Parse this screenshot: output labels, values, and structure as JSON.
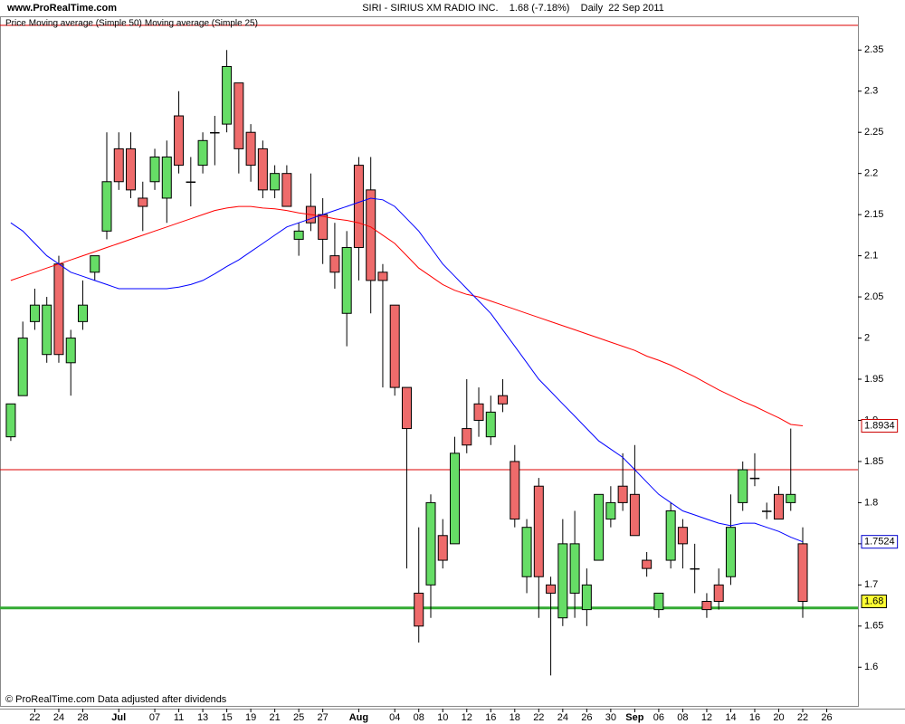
{
  "chart_data": {
    "type": "candlestick",
    "site": "www.ProRealTime.com",
    "title": "SIRI - SIRIUS XM RADIO INC.    1.68 (-7.18%)    Daily  22 Sep 2011",
    "footer": "© ProRealTime.com  Data adjusted after dividends",
    "xlim": [
      -0.9,
      70.6
    ],
    "xticks": [
      {
        "value": 2,
        "label": "22"
      },
      {
        "value": 4,
        "label": "24"
      },
      {
        "value": 6,
        "label": "28"
      },
      {
        "value": 9,
        "label": "Jul"
      },
      {
        "value": 12,
        "label": "07"
      },
      {
        "value": 14,
        "label": "11"
      },
      {
        "value": 16,
        "label": "13"
      },
      {
        "value": 18,
        "label": "15"
      },
      {
        "value": 20,
        "label": "19"
      },
      {
        "value": 22,
        "label": "21"
      },
      {
        "value": 24,
        "label": "25"
      },
      {
        "value": 26,
        "label": "27"
      },
      {
        "value": 29,
        "label": "Aug"
      },
      {
        "value": 32,
        "label": "04"
      },
      {
        "value": 34,
        "label": "08"
      },
      {
        "value": 36,
        "label": "10"
      },
      {
        "value": 38,
        "label": "12"
      },
      {
        "value": 40,
        "label": "16"
      },
      {
        "value": 42,
        "label": "18"
      },
      {
        "value": 44,
        "label": "22"
      },
      {
        "value": 46,
        "label": "24"
      },
      {
        "value": 48,
        "label": "26"
      },
      {
        "value": 50,
        "label": "30"
      },
      {
        "value": 52,
        "label": "Sep"
      },
      {
        "value": 54,
        "label": "06"
      },
      {
        "value": 56,
        "label": "08"
      },
      {
        "value": 58,
        "label": "12"
      },
      {
        "value": 60,
        "label": "14"
      },
      {
        "value": 62,
        "label": "16"
      },
      {
        "value": 64,
        "label": "20"
      },
      {
        "value": 66,
        "label": "22"
      },
      {
        "value": 68,
        "label": "26"
      }
    ],
    "ylim": [
      1.553,
      2.391
    ],
    "yticks": [
      1.6,
      1.65,
      1.7,
      1.75,
      1.8,
      1.85,
      1.9,
      1.95,
      2,
      2.05,
      2.1,
      2.15,
      2.2,
      2.25,
      2.3,
      2.35
    ],
    "series": [
      {
        "name": "Price",
        "type": "candlestick",
        "color": "#000000",
        "up_color": "#66dd66",
        "down_color": "#ee6b6b",
        "open": [
          1.88,
          1.93,
          2.02,
          1.98,
          2.09,
          1.97,
          2.02,
          2.08,
          2.13,
          2.23,
          2.23,
          2.17,
          2.19,
          2.17,
          2.27,
          2.19,
          2.21,
          2.25,
          2.26,
          2.31,
          2.25,
          2.23,
          2.18,
          2.2,
          2.12,
          2.16,
          2.15,
          2.1,
          2.03,
          2.21,
          2.18,
          2.08,
          2.04,
          1.94,
          1.69,
          1.7,
          1.76,
          1.75,
          1.89,
          1.92,
          1.88,
          1.93,
          1.85,
          1.71,
          1.82,
          1.7,
          1.66,
          1.69,
          1.67,
          1.73,
          1.78,
          1.82,
          1.81,
          1.73,
          1.67,
          1.73,
          1.77,
          1.72,
          1.68,
          1.7,
          1.71,
          1.8,
          1.83,
          1.79,
          1.81,
          1.8,
          1.75
        ],
        "high": [
          1.92,
          2.02,
          2.06,
          2.05,
          2.1,
          2.01,
          2.07,
          2.1,
          2.25,
          2.25,
          2.25,
          2.19,
          2.23,
          2.24,
          2.3,
          2.22,
          2.25,
          2.27,
          2.35,
          2.31,
          2.26,
          2.24,
          2.21,
          2.21,
          2.14,
          2.2,
          2.17,
          2.14,
          2.13,
          2.22,
          2.22,
          2.09,
          2.04,
          1.94,
          1.77,
          1.81,
          1.78,
          1.88,
          1.95,
          1.94,
          1.93,
          1.95,
          1.87,
          1.78,
          1.83,
          1.71,
          1.78,
          1.79,
          1.72,
          1.81,
          1.82,
          1.86,
          1.87,
          1.74,
          1.69,
          1.8,
          1.78,
          1.75,
          1.69,
          1.72,
          1.81,
          1.85,
          1.86,
          1.8,
          1.82,
          1.89,
          1.77
        ],
        "low": [
          1.875,
          1.93,
          2.01,
          1.97,
          1.97,
          1.93,
          2.01,
          2.07,
          2.12,
          2.18,
          2.17,
          2.13,
          2.18,
          2.14,
          2.2,
          2.16,
          2.2,
          2.21,
          2.25,
          2.2,
          2.19,
          2.17,
          2.17,
          2.16,
          2.1,
          2.13,
          2.09,
          2.06,
          1.99,
          2.07,
          2.03,
          1.94,
          1.93,
          1.72,
          1.63,
          1.66,
          1.72,
          1.75,
          1.86,
          1.88,
          1.87,
          1.91,
          1.77,
          1.69,
          1.66,
          1.59,
          1.65,
          1.66,
          1.65,
          1.73,
          1.77,
          1.79,
          1.76,
          1.71,
          1.66,
          1.72,
          1.72,
          1.69,
          1.66,
          1.67,
          1.7,
          1.79,
          1.82,
          1.78,
          1.78,
          1.79,
          1.66
        ],
        "close": [
          1.92,
          2.0,
          2.04,
          2.04,
          1.98,
          2.0,
          2.04,
          2.1,
          2.19,
          2.19,
          2.18,
          2.16,
          2.22,
          2.22,
          2.21,
          2.19,
          2.24,
          2.25,
          2.33,
          2.23,
          2.21,
          2.18,
          2.2,
          2.16,
          2.13,
          2.14,
          2.12,
          2.08,
          2.11,
          2.11,
          2.07,
          2.07,
          1.94,
          1.89,
          1.65,
          1.8,
          1.73,
          1.86,
          1.87,
          1.9,
          1.91,
          1.92,
          1.78,
          1.77,
          1.71,
          1.69,
          1.75,
          1.75,
          1.7,
          1.81,
          1.8,
          1.8,
          1.76,
          1.72,
          1.69,
          1.79,
          1.75,
          1.72,
          1.67,
          1.68,
          1.77,
          1.84,
          1.83,
          1.79,
          1.78,
          1.81,
          1.68
        ]
      },
      {
        "name": "Moving average (Simple 50)",
        "type": "line",
        "color": "#ff0000",
        "values": [
          2.07,
          2.075,
          2.08,
          2.085,
          2.09,
          2.095,
          2.1,
          2.105,
          2.11,
          2.115,
          2.12,
          2.125,
          2.13,
          2.135,
          2.14,
          2.145,
          2.15,
          2.155,
          2.158,
          2.16,
          2.16,
          2.158,
          2.157,
          2.155,
          2.152,
          2.15,
          2.148,
          2.145,
          2.143,
          2.14,
          2.135,
          2.125,
          2.115,
          2.1,
          2.085,
          2.075,
          2.065,
          2.058,
          2.053,
          2.05,
          2.045,
          2.04,
          2.035,
          2.03,
          2.025,
          2.02,
          2.015,
          2.01,
          2.005,
          2,
          1.995,
          1.99,
          1.985,
          1.978,
          1.973,
          1.967,
          1.96,
          1.953,
          1.945,
          1.937,
          1.93,
          1.923,
          1.917,
          1.91,
          1.903,
          1.895,
          1.8934
        ]
      },
      {
        "name": "Moving average (Simple 25)",
        "type": "line",
        "color": "#0000ff",
        "values": [
          2.14,
          2.13,
          2.115,
          2.1,
          2.09,
          2.08,
          2.075,
          2.07,
          2.065,
          2.06,
          2.06,
          2.06,
          2.06,
          2.06,
          2.062,
          2.065,
          2.07,
          2.078,
          2.087,
          2.095,
          2.105,
          2.115,
          2.125,
          2.135,
          2.14,
          2.145,
          2.15,
          2.155,
          2.16,
          2.165,
          2.17,
          2.168,
          2.16,
          2.145,
          2.13,
          2.11,
          2.09,
          2.075,
          2.06,
          2.045,
          2.03,
          2.01,
          1.99,
          1.97,
          1.95,
          1.935,
          1.92,
          1.905,
          1.89,
          1.875,
          1.865,
          1.855,
          1.84,
          1.825,
          1.81,
          1.8,
          1.79,
          1.785,
          1.78,
          1.775,
          1.772,
          1.775,
          1.775,
          1.77,
          1.765,
          1.758,
          1.7524
        ]
      }
    ],
    "hlines": [
      {
        "value": 2.38,
        "color": "#dd0000",
        "width": 1
      },
      {
        "value": 1.84,
        "color": "#dd0000",
        "width": 1
      },
      {
        "value": 1.672,
        "color": "#33aa33",
        "width": 3
      }
    ],
    "price_markers": [
      {
        "value": 1.8934,
        "color": "#cc0000",
        "background": "#ffffff"
      },
      {
        "value": 1.7524,
        "color": "#0000cc",
        "background": "#ffffff"
      },
      {
        "value": 1.68,
        "color": "#000000",
        "background": "#ffff33"
      }
    ]
  }
}
